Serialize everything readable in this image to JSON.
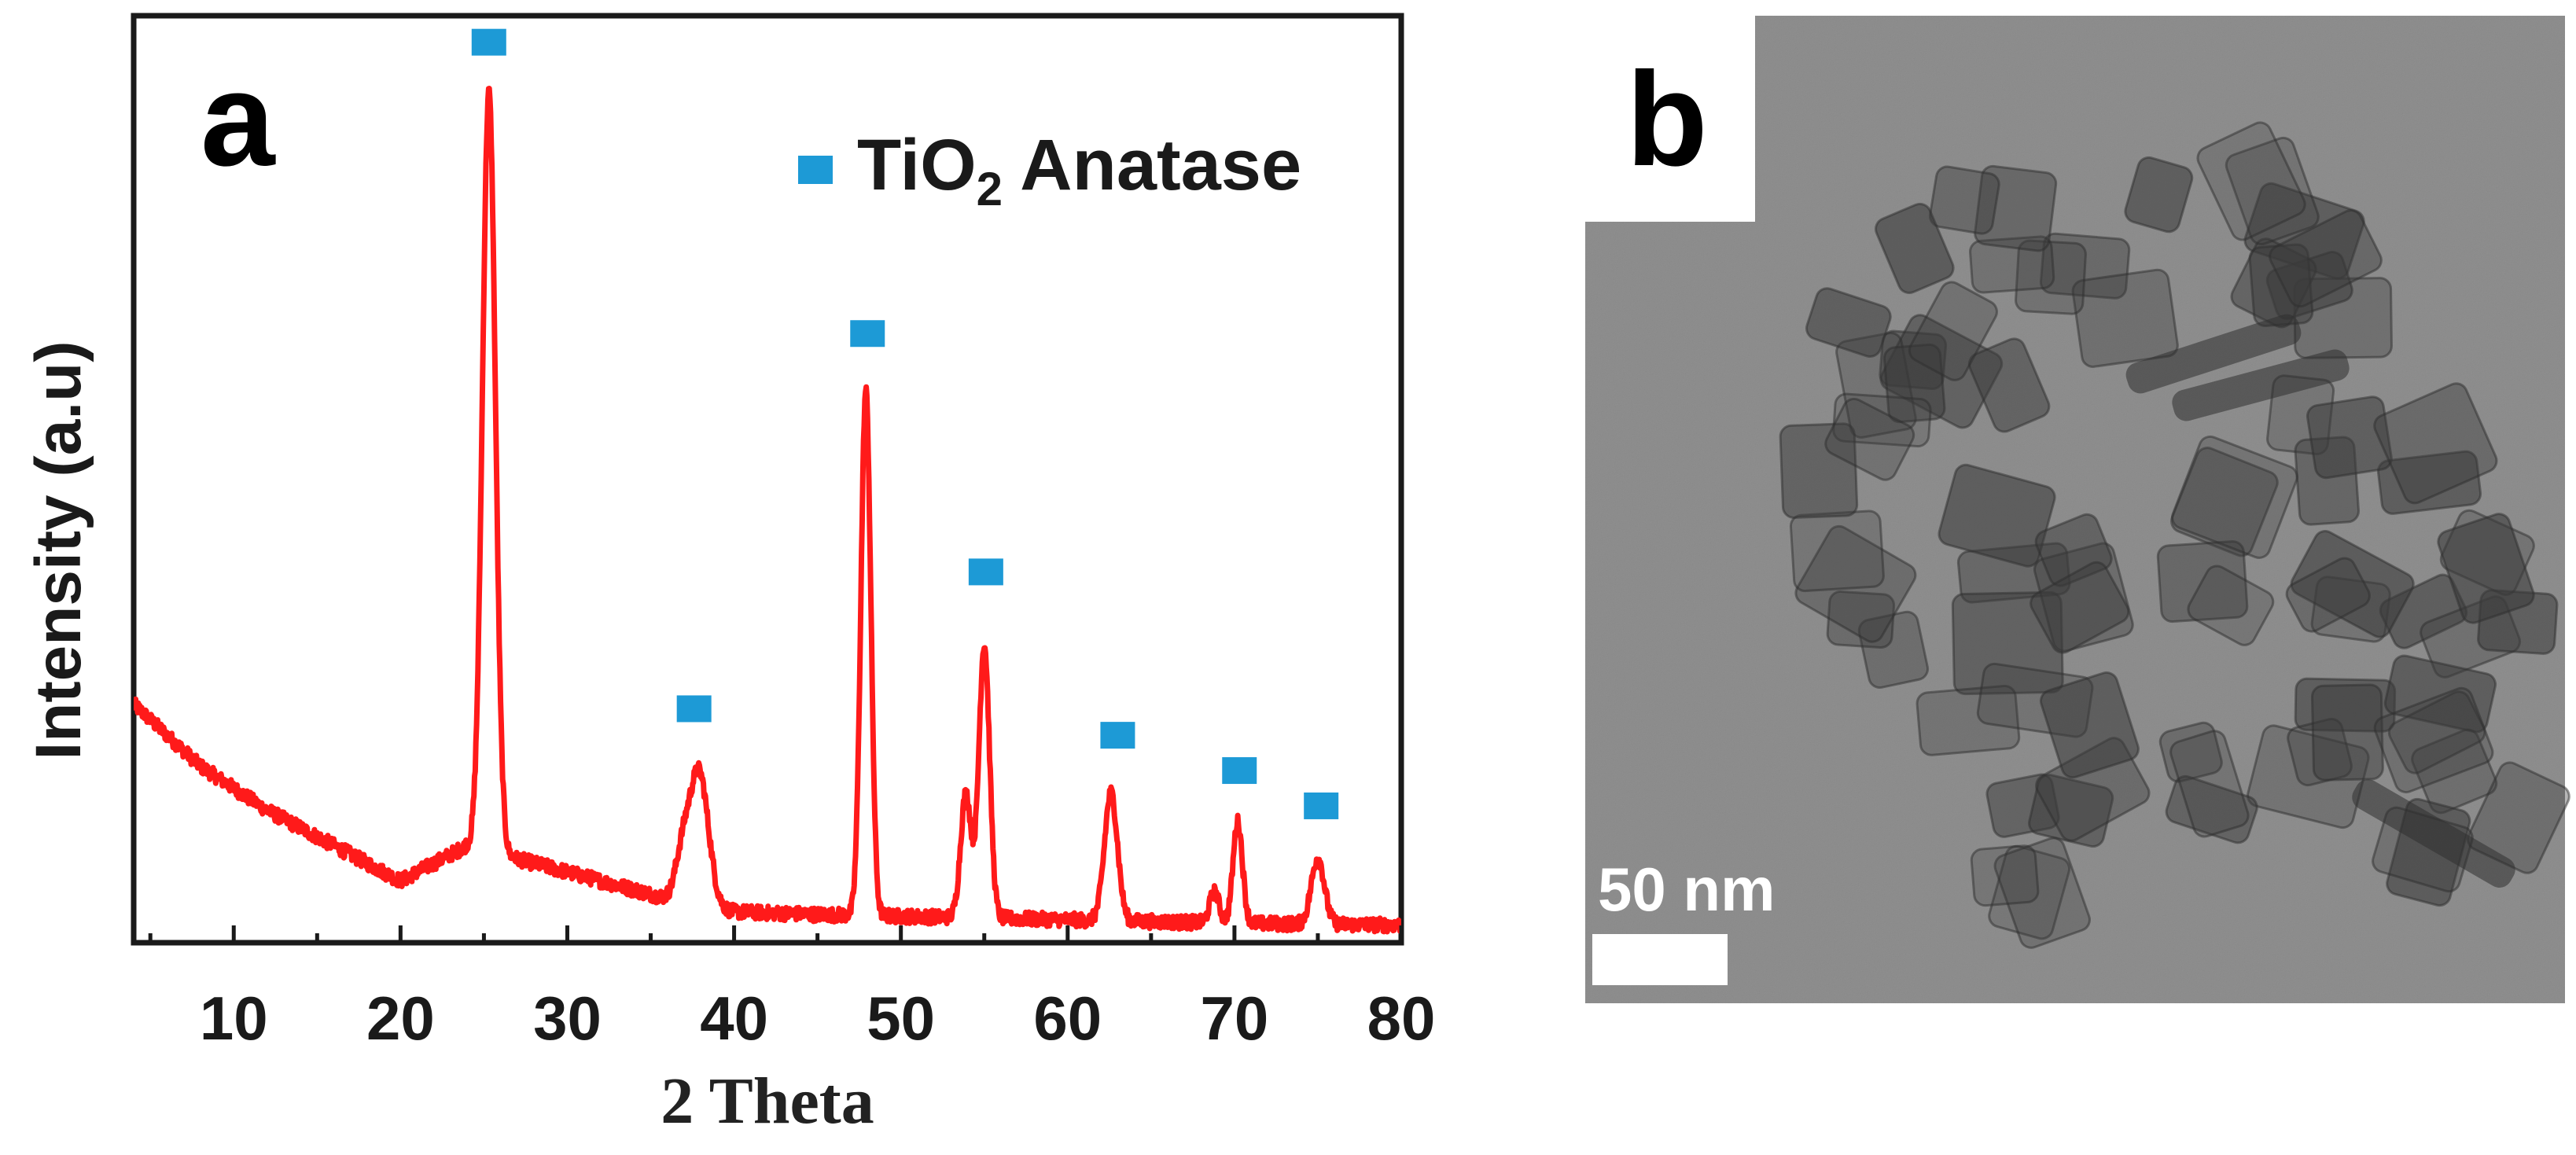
{
  "colors": {
    "curve": "#ff1a1a",
    "marker": "#1d9ad6",
    "axis": "#1a1a1a",
    "tem_background": "#8f8f8f",
    "particle_dark": "#3c3c3c",
    "scale_bar": "#ffffff"
  },
  "panel_a": {
    "letter": "a",
    "legend": {
      "marker_icon": "square-marker-icon",
      "label_prefix": "TiO",
      "label_subscript": "2",
      "label_suffix": " Anatase"
    }
  },
  "panel_b": {
    "letter": "b",
    "scale_bar_label": "50 nm",
    "image_description_icon": "tem-micrograph-icon"
  },
  "chart_data": {
    "type": "line",
    "title": "",
    "xlabel": "2 Theta",
    "ylabel": "Intensity (a.u)",
    "xlim": [
      4,
      80
    ],
    "ylim": [
      0,
      105
    ],
    "xticks": [
      10,
      20,
      30,
      40,
      50,
      60,
      70,
      80
    ],
    "grid": false,
    "legend": {
      "position": "top-right",
      "entries": [
        "TiO2 Anatase"
      ]
    },
    "series": [
      {
        "name": "XRD pattern",
        "baseline": {
          "x": [
            4,
            8,
            12,
            16,
            20,
            24,
            28,
            32,
            36,
            40,
            45,
            50,
            55,
            60,
            65,
            70,
            75,
            80
          ],
          "y": [
            27,
            20,
            15,
            11,
            7,
            11,
            9,
            7,
            5,
            3.5,
            3.2,
            3,
            2.8,
            2.6,
            2.4,
            2.2,
            2.1,
            2
          ]
        },
        "peaks": [
          {
            "center": 25.3,
            "height": 86,
            "width": 0.55
          },
          {
            "center": 37.9,
            "height": 15,
            "width": 0.8
          },
          {
            "center": 36.9,
            "height": 5,
            "width": 0.6
          },
          {
            "center": 47.9,
            "height": 59.5,
            "width": 0.42
          },
          {
            "center": 53.9,
            "height": 14,
            "width": 0.45
          },
          {
            "center": 55.0,
            "height": 31,
            "width": 0.45
          },
          {
            "center": 62.6,
            "height": 14.5,
            "width": 0.55
          },
          {
            "center": 68.8,
            "height": 3.5,
            "width": 0.4
          },
          {
            "center": 70.2,
            "height": 11.5,
            "width": 0.4
          },
          {
            "center": 75.0,
            "height": 7.5,
            "width": 0.55
          }
        ]
      }
    ],
    "anatase_markers": [
      {
        "x": 25.3,
        "y": 102
      },
      {
        "x": 37.6,
        "y": 26.5
      },
      {
        "x": 48.0,
        "y": 69
      },
      {
        "x": 55.1,
        "y": 42
      },
      {
        "x": 63.0,
        "y": 23.5
      },
      {
        "x": 70.3,
        "y": 19.5
      },
      {
        "x": 75.2,
        "y": 15.5
      }
    ]
  }
}
